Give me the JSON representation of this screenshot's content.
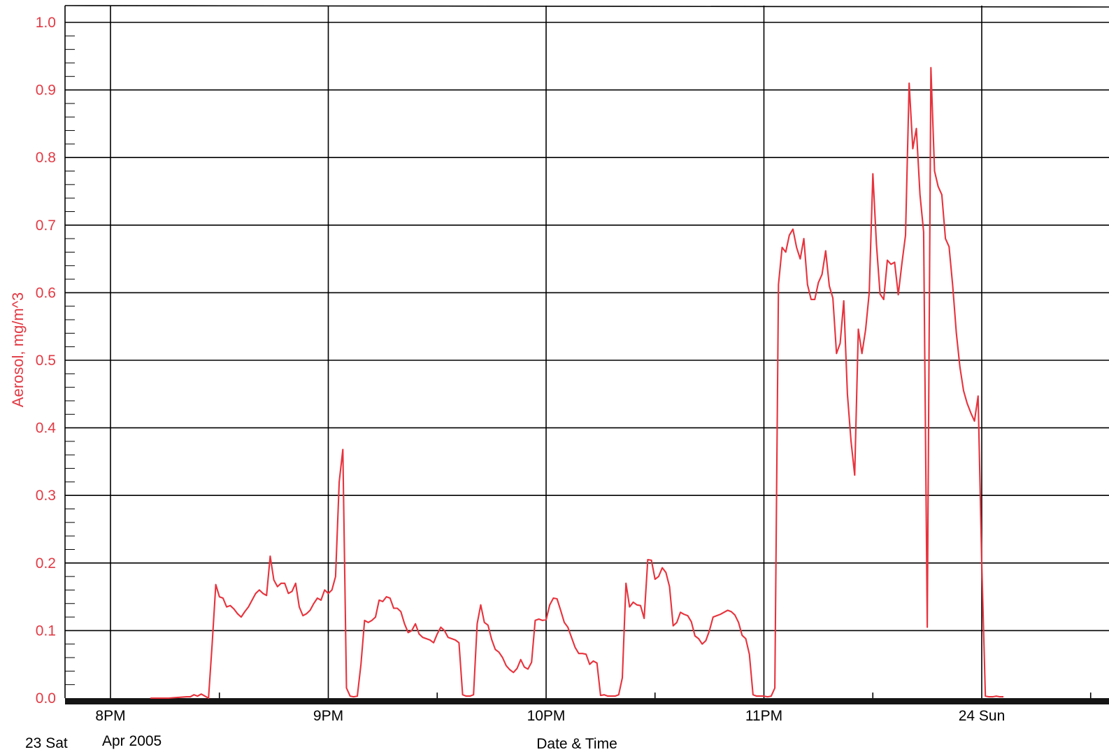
{
  "chart_data": {
    "type": "line",
    "title": "",
    "xlabel": "Date & Time",
    "ylabel": "Aerosol, mg/m^3",
    "ylim": [
      0.0,
      1.0
    ],
    "xlim": [
      "2005-04-23T19:47",
      "2005-04-24T00:17"
    ],
    "yticks": [
      "0.0",
      "0.1",
      "0.2",
      "0.3",
      "0.4",
      "0.5",
      "0.6",
      "0.7",
      "0.8",
      "0.9",
      "1.0"
    ],
    "xticks": [
      {
        "t": "2005-04-23T20:00",
        "label": "8PM"
      },
      {
        "t": "2005-04-23T21:00",
        "label": "9PM"
      },
      {
        "t": "2005-04-23T22:00",
        "label": "10PM"
      },
      {
        "t": "2005-04-23T23:00",
        "label": "11PM"
      },
      {
        "t": "2005-04-24T00:00",
        "label": "24 Sun"
      }
    ],
    "date_labels": {
      "day": "23 Sat",
      "month": "Apr 2005"
    },
    "grid": true,
    "colors": {
      "series": "#e8323c",
      "axis_text": "#e23a44",
      "grid": "#000000"
    },
    "series": [
      {
        "name": "",
        "x": [
          "2005-04-23T20:11",
          "2005-04-23T20:16",
          "2005-04-23T20:21",
          "2005-04-23T20:22",
          "2005-04-23T20:23",
          "2005-04-23T20:24",
          "2005-04-23T20:25",
          "2005-04-23T20:26",
          "2005-04-23T20:27",
          "2005-04-23T20:28",
          "2005-04-23T20:29",
          "2005-04-23T20:30",
          "2005-04-23T20:31",
          "2005-04-23T20:32",
          "2005-04-23T20:33",
          "2005-04-23T20:34",
          "2005-04-23T20:35",
          "2005-04-23T20:36",
          "2005-04-23T20:37",
          "2005-04-23T20:38",
          "2005-04-23T20:39",
          "2005-04-23T20:40",
          "2005-04-23T20:41",
          "2005-04-23T20:42",
          "2005-04-23T20:43",
          "2005-04-23T20:44",
          "2005-04-23T20:45",
          "2005-04-23T20:46",
          "2005-04-23T20:47",
          "2005-04-23T20:48",
          "2005-04-23T20:49",
          "2005-04-23T20:50",
          "2005-04-23T20:51",
          "2005-04-23T20:52",
          "2005-04-23T20:53",
          "2005-04-23T20:54",
          "2005-04-23T20:55",
          "2005-04-23T20:56",
          "2005-04-23T20:57",
          "2005-04-23T20:58",
          "2005-04-23T20:59",
          "2005-04-23T21:00",
          "2005-04-23T21:01",
          "2005-04-23T21:02",
          "2005-04-23T21:03",
          "2005-04-23T21:04",
          "2005-04-23T21:05",
          "2005-04-23T21:06",
          "2005-04-23T21:07",
          "2005-04-23T21:08",
          "2005-04-23T21:09",
          "2005-04-23T21:10",
          "2005-04-23T21:11",
          "2005-04-23T21:12",
          "2005-04-23T21:13",
          "2005-04-23T21:14",
          "2005-04-23T21:15",
          "2005-04-23T21:16",
          "2005-04-23T21:17",
          "2005-04-23T21:18",
          "2005-04-23T21:19",
          "2005-04-23T21:20",
          "2005-04-23T21:21",
          "2005-04-23T21:22",
          "2005-04-23T21:23",
          "2005-04-23T21:24",
          "2005-04-23T21:25",
          "2005-04-23T21:26",
          "2005-04-23T21:27",
          "2005-04-23T21:28",
          "2005-04-23T21:29",
          "2005-04-23T21:30",
          "2005-04-23T21:31",
          "2005-04-23T21:32",
          "2005-04-23T21:33",
          "2005-04-23T21:34",
          "2005-04-23T21:35",
          "2005-04-23T21:36",
          "2005-04-23T21:37",
          "2005-04-23T21:38",
          "2005-04-23T21:39",
          "2005-04-23T21:40",
          "2005-04-23T21:41",
          "2005-04-23T21:42",
          "2005-04-23T21:43",
          "2005-04-23T21:44",
          "2005-04-23T21:45",
          "2005-04-23T21:46",
          "2005-04-23T21:47",
          "2005-04-23T21:48",
          "2005-04-23T21:49",
          "2005-04-23T21:50",
          "2005-04-23T21:51",
          "2005-04-23T21:52",
          "2005-04-23T21:53",
          "2005-04-23T21:54",
          "2005-04-23T21:55",
          "2005-04-23T21:56",
          "2005-04-23T21:57",
          "2005-04-23T21:58",
          "2005-04-23T21:59",
          "2005-04-23T22:00",
          "2005-04-23T22:01",
          "2005-04-23T22:02",
          "2005-04-23T22:03",
          "2005-04-23T22:04",
          "2005-04-23T22:05",
          "2005-04-23T22:06",
          "2005-04-23T22:07",
          "2005-04-23T22:08",
          "2005-04-23T22:09",
          "2005-04-23T22:10",
          "2005-04-23T22:11",
          "2005-04-23T22:12",
          "2005-04-23T22:13",
          "2005-04-23T22:14",
          "2005-04-23T22:15",
          "2005-04-23T22:16",
          "2005-04-23T22:17",
          "2005-04-23T22:18",
          "2005-04-23T22:19",
          "2005-04-23T22:20",
          "2005-04-23T22:21",
          "2005-04-23T22:22",
          "2005-04-23T22:23",
          "2005-04-23T22:24",
          "2005-04-23T22:25",
          "2005-04-23T22:26",
          "2005-04-23T22:27",
          "2005-04-23T22:28",
          "2005-04-23T22:29",
          "2005-04-23T22:30",
          "2005-04-23T22:31",
          "2005-04-23T22:32",
          "2005-04-23T22:33",
          "2005-04-23T22:34",
          "2005-04-23T22:35",
          "2005-04-23T22:36",
          "2005-04-23T22:37",
          "2005-04-23T22:38",
          "2005-04-23T22:39",
          "2005-04-23T22:40",
          "2005-04-23T22:41",
          "2005-04-23T22:42",
          "2005-04-23T22:43",
          "2005-04-23T22:44",
          "2005-04-23T22:45",
          "2005-04-23T22:46",
          "2005-04-23T22:47",
          "2005-04-23T22:48",
          "2005-04-23T22:49",
          "2005-04-23T22:50",
          "2005-04-23T22:51",
          "2005-04-23T22:52",
          "2005-04-23T22:53",
          "2005-04-23T22:54",
          "2005-04-23T22:55",
          "2005-04-23T22:56",
          "2005-04-23T22:57",
          "2005-04-23T22:58",
          "2005-04-23T22:59",
          "2005-04-23T23:00",
          "2005-04-23T23:01",
          "2005-04-23T23:02",
          "2005-04-23T23:03",
          "2005-04-23T23:04",
          "2005-04-23T23:05",
          "2005-04-23T23:06",
          "2005-04-23T23:07",
          "2005-04-23T23:08",
          "2005-04-23T23:09",
          "2005-04-23T23:10",
          "2005-04-23T23:11",
          "2005-04-23T23:12",
          "2005-04-23T23:13",
          "2005-04-23T23:14",
          "2005-04-23T23:15",
          "2005-04-23T23:16",
          "2005-04-23T23:17",
          "2005-04-23T23:18",
          "2005-04-23T23:19",
          "2005-04-23T23:20",
          "2005-04-23T23:21",
          "2005-04-23T23:22",
          "2005-04-23T23:23",
          "2005-04-23T23:24",
          "2005-04-23T23:25",
          "2005-04-23T23:26",
          "2005-04-23T23:27",
          "2005-04-23T23:28",
          "2005-04-23T23:29",
          "2005-04-23T23:30",
          "2005-04-23T23:31",
          "2005-04-23T23:32",
          "2005-04-23T23:33",
          "2005-04-23T23:34",
          "2005-04-23T23:35",
          "2005-04-23T23:36",
          "2005-04-23T23:37",
          "2005-04-23T23:38",
          "2005-04-23T23:39",
          "2005-04-23T23:40",
          "2005-04-23T23:41",
          "2005-04-23T23:42",
          "2005-04-23T23:43",
          "2005-04-23T23:44",
          "2005-04-23T23:45",
          "2005-04-23T23:46",
          "2005-04-23T23:47",
          "2005-04-23T23:48",
          "2005-04-23T23:49",
          "2005-04-23T23:50",
          "2005-04-23T23:51",
          "2005-04-23T23:52",
          "2005-04-23T23:53",
          "2005-04-23T23:54",
          "2005-04-23T23:55",
          "2005-04-23T23:56",
          "2005-04-23T23:57",
          "2005-04-23T23:58",
          "2005-04-23T23:59",
          "2005-04-24T00:00",
          "2005-04-24T00:01",
          "2005-04-24T00:02",
          "2005-04-24T00:03",
          "2005-04-24T00:04",
          "2005-04-24T00:05",
          "2005-04-24T00:06"
        ],
        "y": [
          0.0,
          0.0,
          0.002,
          0.002,
          0.005,
          0.003,
          0.006,
          0.003,
          0.0,
          0.08,
          0.168,
          0.15,
          0.148,
          0.135,
          0.137,
          0.132,
          0.125,
          0.12,
          0.128,
          0.135,
          0.145,
          0.155,
          0.16,
          0.155,
          0.152,
          0.21,
          0.175,
          0.165,
          0.17,
          0.17,
          0.155,
          0.158,
          0.17,
          0.135,
          0.122,
          0.125,
          0.13,
          0.14,
          0.148,
          0.145,
          0.16,
          0.155,
          0.16,
          0.18,
          0.32,
          0.368,
          0.015,
          0.003,
          0.002,
          0.003,
          0.05,
          0.115,
          0.112,
          0.115,
          0.12,
          0.145,
          0.143,
          0.15,
          0.148,
          0.133,
          0.133,
          0.128,
          0.11,
          0.097,
          0.1,
          0.11,
          0.095,
          0.09,
          0.088,
          0.086,
          0.082,
          0.095,
          0.105,
          0.1,
          0.09,
          0.088,
          0.086,
          0.082,
          0.005,
          0.003,
          0.003,
          0.005,
          0.11,
          0.138,
          0.112,
          0.108,
          0.087,
          0.072,
          0.068,
          0.06,
          0.048,
          0.042,
          0.038,
          0.044,
          0.057,
          0.046,
          0.043,
          0.053,
          0.115,
          0.117,
          0.115,
          0.116,
          0.138,
          0.148,
          0.147,
          0.13,
          0.112,
          0.105,
          0.09,
          0.075,
          0.066,
          0.066,
          0.065,
          0.05,
          0.055,
          0.052,
          0.004,
          0.005,
          0.003,
          0.003,
          0.003,
          0.005,
          0.03,
          0.17,
          0.135,
          0.142,
          0.138,
          0.137,
          0.118,
          0.205,
          0.204,
          0.176,
          0.18,
          0.193,
          0.186,
          0.165,
          0.107,
          0.112,
          0.127,
          0.124,
          0.122,
          0.113,
          0.092,
          0.088,
          0.08,
          0.085,
          0.1,
          0.12,
          0.122,
          0.124,
          0.127,
          0.13,
          0.128,
          0.123,
          0.112,
          0.093,
          0.088,
          0.065,
          0.005,
          0.003,
          0.003,
          0.003,
          0.002,
          0.003,
          0.015,
          0.612,
          0.667,
          0.66,
          0.685,
          0.694,
          0.667,
          0.65,
          0.68,
          0.612,
          0.59,
          0.59,
          0.615,
          0.627,
          0.662,
          0.61,
          0.592,
          0.51,
          0.525,
          0.588,
          0.45,
          0.38,
          0.33,
          0.546,
          0.51,
          0.545,
          0.6,
          0.776,
          0.672,
          0.598,
          0.59,
          0.648,
          0.642,
          0.645,
          0.597,
          0.643,
          0.685,
          0.91,
          0.813,
          0.843,
          0.745,
          0.69,
          0.105,
          0.933,
          0.78,
          0.757,
          0.745,
          0.68,
          0.668,
          0.61,
          0.54,
          0.49,
          0.455,
          0.436,
          0.422,
          0.41,
          0.447,
          0.2,
          0.003,
          0.002,
          0.002,
          0.003,
          0.002,
          0.002
        ]
      }
    ]
  }
}
